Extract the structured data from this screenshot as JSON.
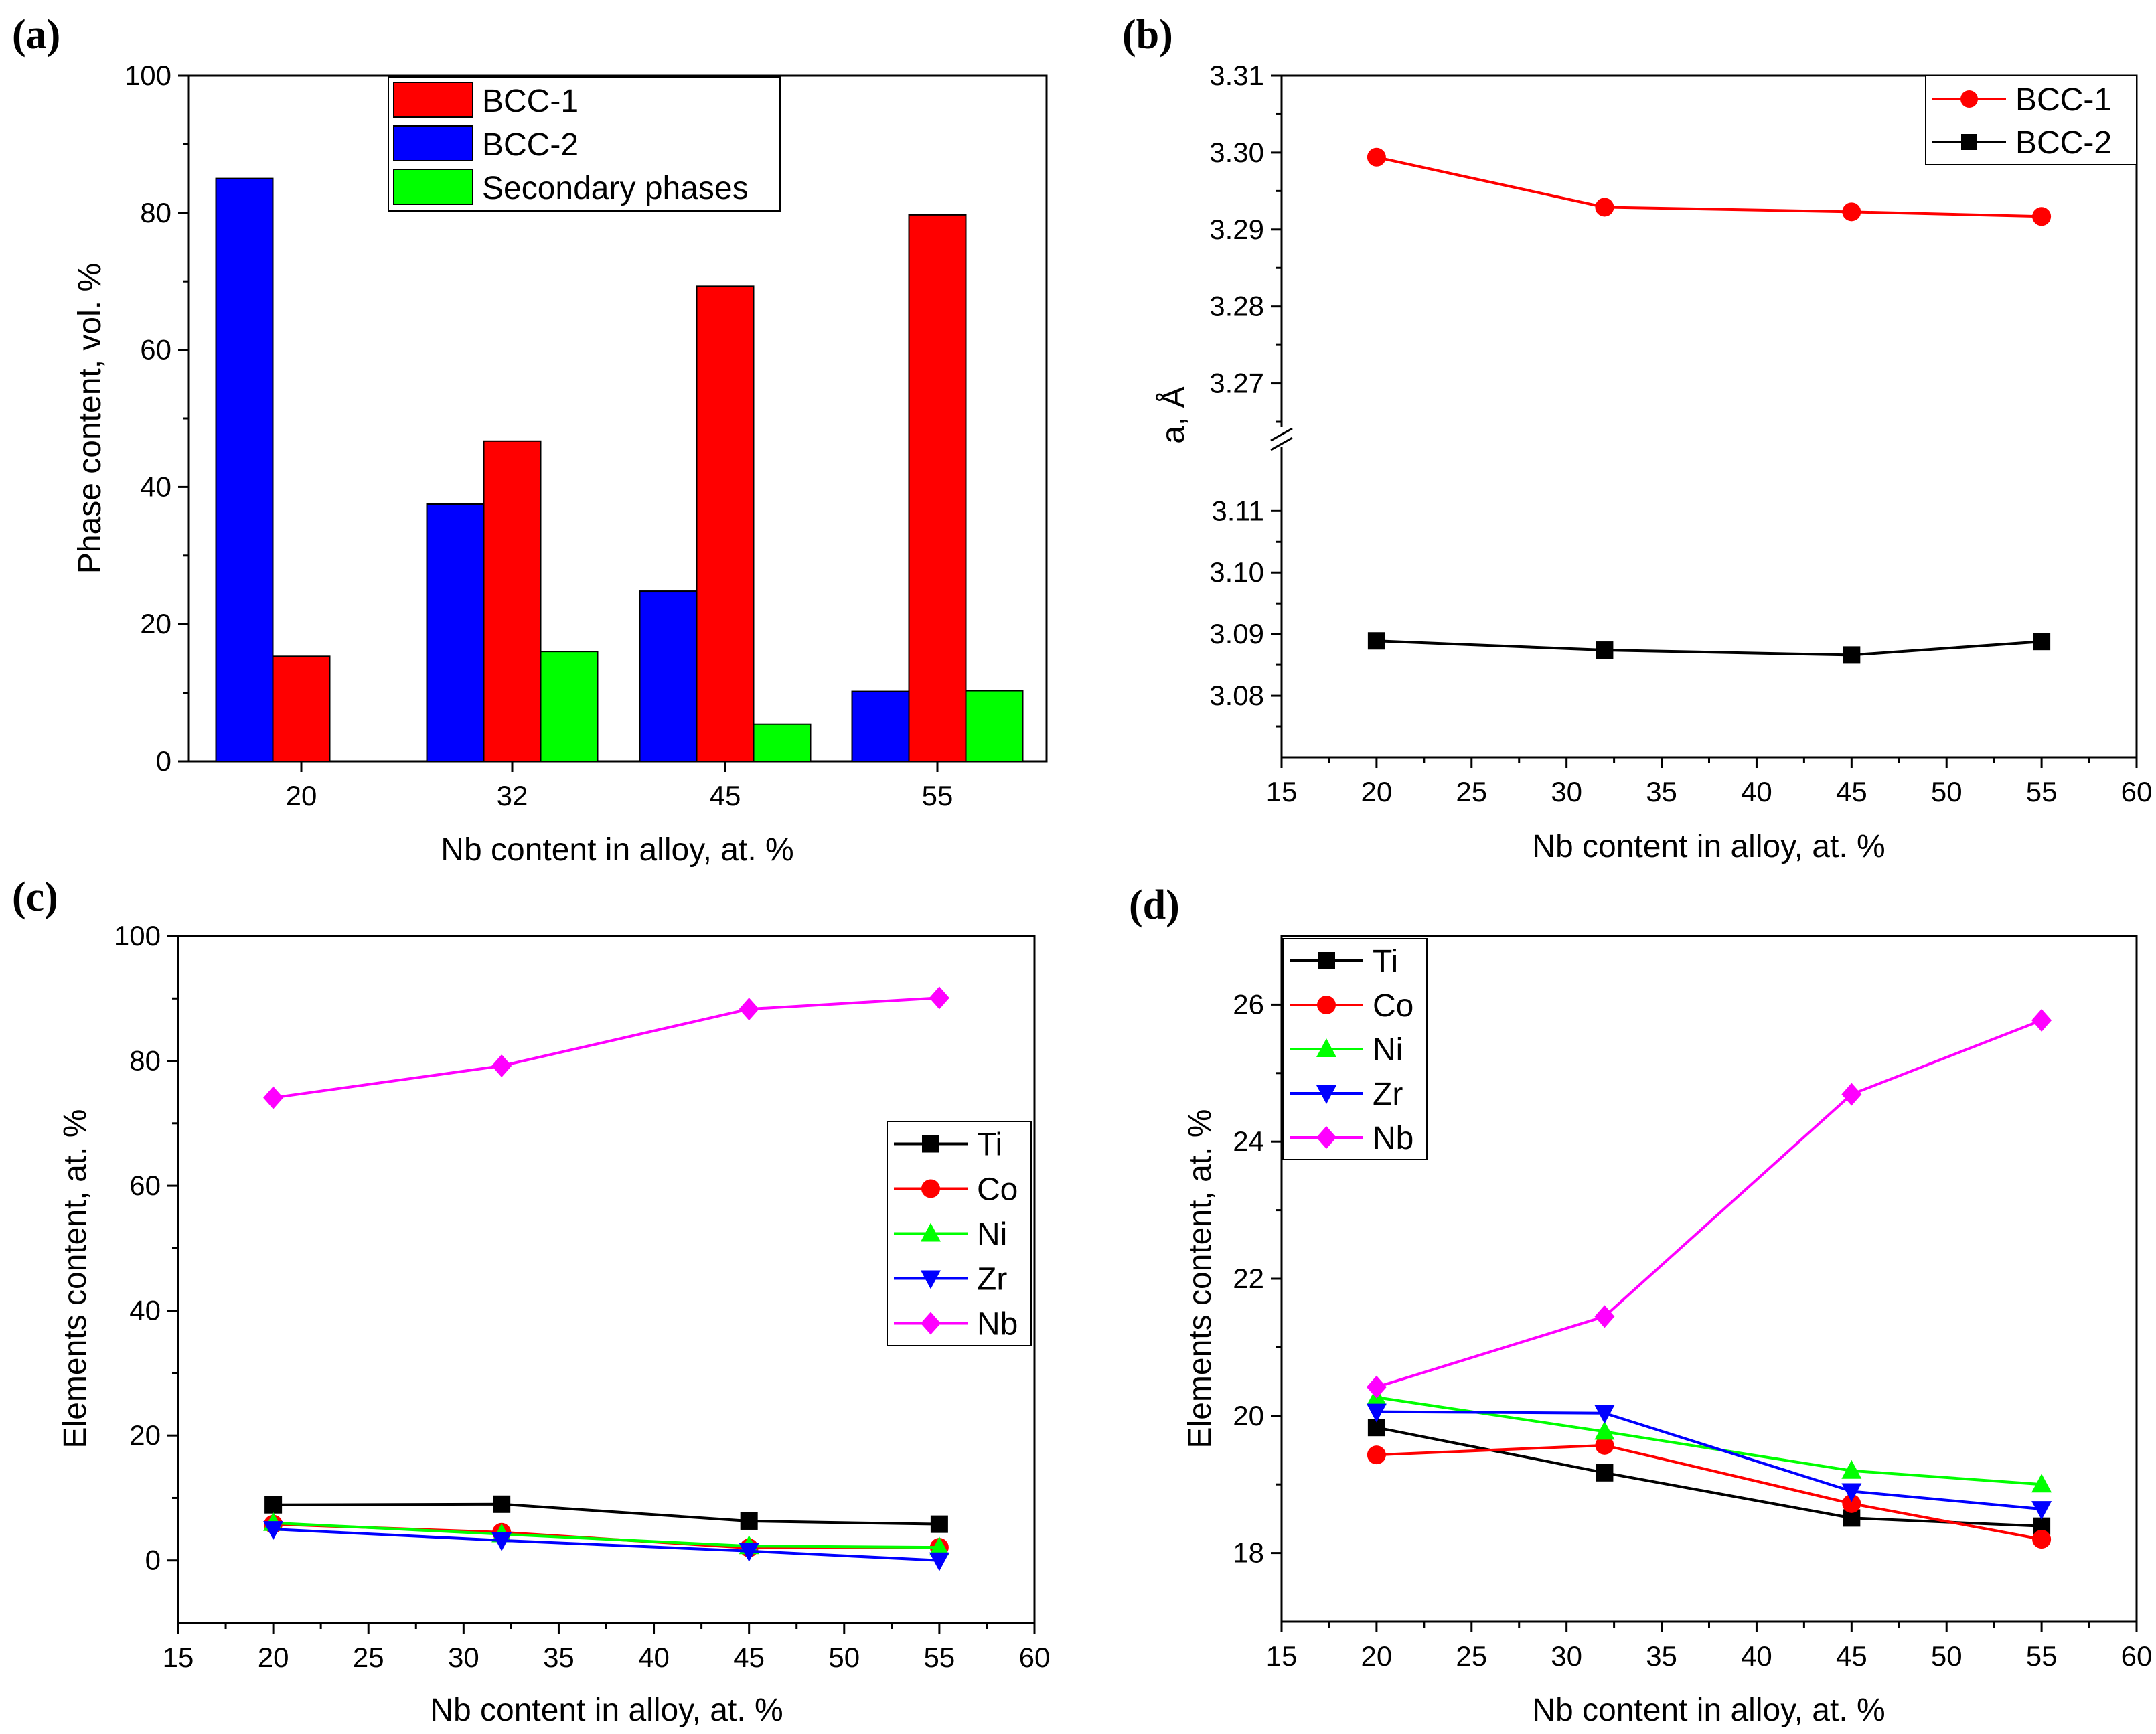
{
  "chart_data": [
    {
      "panel": "(a)",
      "type": "bar",
      "categories": [
        "20",
        "32",
        "45",
        "55"
      ],
      "series": [
        {
          "name": "BCC-2",
          "color": "#0000ff",
          "values": [
            85,
            37.5,
            24.8,
            10.2
          ]
        },
        {
          "name": "BCC-1",
          "color": "#ff0000",
          "values": [
            15.3,
            46.7,
            69.3,
            79.7
          ]
        },
        {
          "name": "Secondary phases",
          "color": "#00ff00",
          "values": [
            0,
            16,
            5.4,
            10.3
          ]
        }
      ],
      "legend_order": [
        "BCC-1",
        "BCC-2",
        "Secondary phases"
      ],
      "xlabel": "Nb content in alloy, at. %",
      "ylabel": "Phase content, vol. %",
      "ylim": [
        0,
        100
      ],
      "yticks": [
        "0",
        "20",
        "40",
        "60",
        "80",
        "100"
      ],
      "legend": "top-center"
    },
    {
      "panel": "(b)",
      "type": "line",
      "x": [
        20,
        32,
        45,
        55
      ],
      "series": [
        {
          "name": "BCC-1",
          "color": "#ff0000",
          "marker": "circle",
          "values": [
            3.2994,
            3.2929,
            3.2923,
            3.2917
          ]
        },
        {
          "name": "BCC-2",
          "color": "#000000",
          "marker": "square",
          "values": [
            3.0889,
            3.0874,
            3.0866,
            3.0888
          ]
        }
      ],
      "xlabel": "Nb content in alloy, at. %",
      "ylabel": "a, Å",
      "xlim": [
        15,
        60
      ],
      "xticks": [
        "15",
        "20",
        "25",
        "30",
        "35",
        "40",
        "45",
        "50",
        "55",
        "60"
      ],
      "ylim_upper": [
        3.263,
        3.31
      ],
      "ylim_lower": [
        3.07,
        3.122
      ],
      "yticks_upper": [
        "3.27",
        "3.28",
        "3.29",
        "3.30",
        "3.31"
      ],
      "yticks_lower": [
        "3.08",
        "3.09",
        "3.10",
        "3.11"
      ],
      "axis_break": true,
      "legend": "top-right"
    },
    {
      "panel": "(c)",
      "type": "line",
      "x": [
        20,
        32,
        45,
        55
      ],
      "series": [
        {
          "name": "Ti",
          "color": "#000000",
          "marker": "square",
          "values": [
            8.9,
            9.0,
            6.3,
            5.8
          ]
        },
        {
          "name": "Co",
          "color": "#ff0000",
          "marker": "circle",
          "values": [
            5.8,
            4.5,
            2.0,
            2.1
          ]
        },
        {
          "name": "Ni",
          "color": "#00ff00",
          "marker": "triangle-up",
          "values": [
            6.0,
            4.2,
            2.3,
            2.1
          ]
        },
        {
          "name": "Zr",
          "color": "#0000ff",
          "marker": "triangle-down",
          "values": [
            5.0,
            3.2,
            1.5,
            0
          ]
        },
        {
          "name": "Nb",
          "color": "#ff00ff",
          "marker": "diamond",
          "values": [
            74.1,
            79.2,
            88.3,
            90.1
          ]
        }
      ],
      "xlabel": "Nb content in alloy, at. %",
      "ylabel": "Elements content, at. %",
      "xlim": [
        15,
        60
      ],
      "ylim": [
        -10,
        100
      ],
      "xticks": [
        "15",
        "20",
        "25",
        "30",
        "35",
        "40",
        "45",
        "50",
        "55",
        "60"
      ],
      "yticks": [
        "0",
        "20",
        "40",
        "60",
        "80",
        "100"
      ],
      "legend": "center-right"
    },
    {
      "panel": "(d)",
      "type": "line",
      "x": [
        20,
        32,
        45,
        55
      ],
      "series": [
        {
          "name": "Ti",
          "color": "#000000",
          "marker": "square",
          "values": [
            19.83,
            19.17,
            18.51,
            18.39
          ]
        },
        {
          "name": "Co",
          "color": "#ff0000",
          "marker": "circle",
          "values": [
            19.43,
            19.57,
            18.72,
            18.2
          ]
        },
        {
          "name": "Ni",
          "color": "#00ff00",
          "marker": "triangle-up",
          "values": [
            20.27,
            19.77,
            19.2,
            19.0
          ]
        },
        {
          "name": "Zr",
          "color": "#0000ff",
          "marker": "triangle-down",
          "values": [
            20.06,
            20.04,
            18.9,
            18.64
          ]
        },
        {
          "name": "Nb",
          "color": "#ff00ff",
          "marker": "diamond",
          "values": [
            20.42,
            21.45,
            24.69,
            25.77
          ]
        }
      ],
      "xlabel": "Nb content in alloy, at. %",
      "ylabel": "Elements content, at. %",
      "xlim": [
        15,
        60
      ],
      "ylim": [
        17,
        27
      ],
      "xticks": [
        "15",
        "20",
        "25",
        "30",
        "35",
        "40",
        "45",
        "50",
        "55",
        "60"
      ],
      "yticks": [
        "18",
        "20",
        "22",
        "24",
        "26"
      ],
      "legend": "top-left"
    }
  ]
}
